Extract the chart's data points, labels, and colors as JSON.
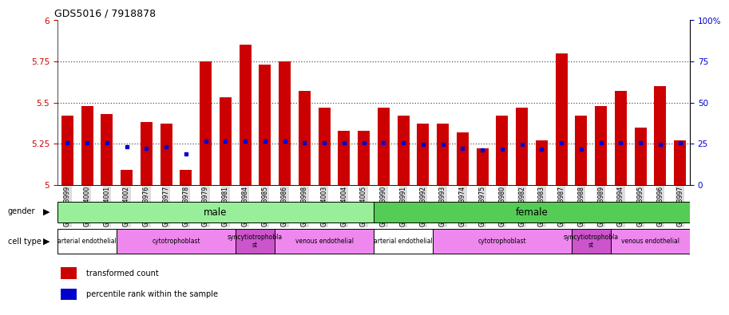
{
  "title": "GDS5016 / 7918878",
  "samples": [
    "GSM1083999",
    "GSM1084000",
    "GSM1084001",
    "GSM1084002",
    "GSM1083976",
    "GSM1083977",
    "GSM1083978",
    "GSM1083979",
    "GSM1083981",
    "GSM1083984",
    "GSM1083985",
    "GSM1083986",
    "GSM1083998",
    "GSM1084003",
    "GSM1084004",
    "GSM1084005",
    "GSM1083990",
    "GSM1083991",
    "GSM1083992",
    "GSM1083993",
    "GSM1083974",
    "GSM1083975",
    "GSM1083980",
    "GSM1083982",
    "GSM1083983",
    "GSM1083987",
    "GSM1083988",
    "GSM1083989",
    "GSM1083994",
    "GSM1083995",
    "GSM1083996",
    "GSM1083997"
  ],
  "bar_values": [
    5.42,
    5.48,
    5.43,
    5.09,
    5.38,
    5.37,
    5.09,
    5.75,
    5.53,
    5.85,
    5.73,
    5.75,
    5.57,
    5.47,
    5.33,
    5.33,
    5.47,
    5.42,
    5.37,
    5.37,
    5.32,
    5.22,
    5.42,
    5.47,
    5.27,
    5.8,
    5.42,
    5.48,
    5.57,
    5.35,
    5.6,
    5.27
  ],
  "percentile_values": [
    5.255,
    5.255,
    5.255,
    5.23,
    5.22,
    5.23,
    5.19,
    5.265,
    5.265,
    5.265,
    5.265,
    5.265,
    5.255,
    5.255,
    5.255,
    5.255,
    5.255,
    5.255,
    5.245,
    5.245,
    5.22,
    5.21,
    5.215,
    5.245,
    5.215,
    5.255,
    5.215,
    5.255,
    5.255,
    5.255,
    5.245,
    5.255
  ],
  "ymin": 5.0,
  "ymax": 6.0,
  "yticks": [
    5.0,
    5.25,
    5.5,
    5.75,
    6.0
  ],
  "ytick_labels": [
    "5",
    "5.25",
    "5.5",
    "5.75",
    "6"
  ],
  "right_yticks": [
    0,
    25,
    50,
    75,
    100
  ],
  "right_ytick_labels": [
    "0",
    "25",
    "50",
    "75",
    "100%"
  ],
  "bar_color": "#cc0000",
  "percentile_color": "#0000cc",
  "grid_color": "#555555",
  "gender_row": [
    {
      "label": "male",
      "start": 0,
      "end": 16,
      "color": "#99ee99"
    },
    {
      "label": "female",
      "start": 16,
      "end": 32,
      "color": "#55cc55"
    }
  ],
  "cell_type_row": [
    {
      "label": "arterial endothelial",
      "start": 0,
      "end": 3,
      "color": "#ffffff"
    },
    {
      "label": "cytotrophoblast",
      "start": 3,
      "end": 9,
      "color": "#ee88ee"
    },
    {
      "label": "syncytiotrophobla\nst",
      "start": 9,
      "end": 11,
      "color": "#cc55cc"
    },
    {
      "label": "venous endothelial",
      "start": 11,
      "end": 16,
      "color": "#ee88ee"
    },
    {
      "label": "arterial endothelial",
      "start": 16,
      "end": 19,
      "color": "#ffffff"
    },
    {
      "label": "cytotrophoblast",
      "start": 19,
      "end": 26,
      "color": "#ee88ee"
    },
    {
      "label": "syncytiotrophobla\nst",
      "start": 26,
      "end": 28,
      "color": "#cc55cc"
    },
    {
      "label": "venous endothelial",
      "start": 28,
      "end": 32,
      "color": "#ee88ee"
    }
  ],
  "legend_items": [
    {
      "label": "transformed count",
      "color": "#cc0000"
    },
    {
      "label": "percentile rank within the sample",
      "color": "#0000cc"
    }
  ],
  "tick_bg_color": "#dddddd"
}
